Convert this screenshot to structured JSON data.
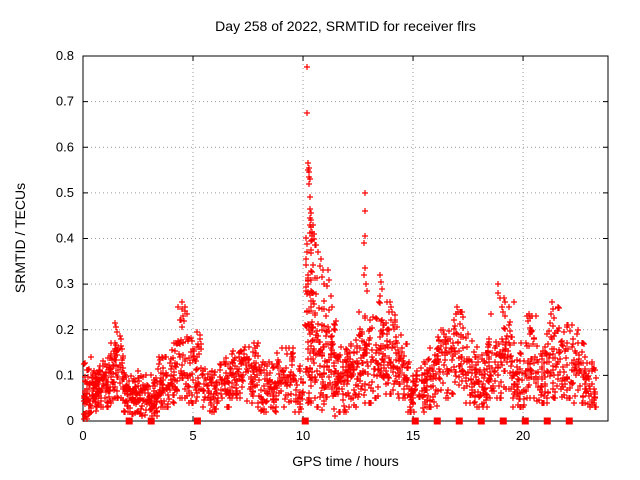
{
  "chart_data": {
    "type": "scatter",
    "title": "Day 258 of 2022, SRMTID for receiver flrs",
    "xlabel": "GPS time / hours",
    "ylabel": "SRMTID / TECUs",
    "xlim": [
      0,
      23.86
    ],
    "ylim": [
      0,
      0.8
    ],
    "xticks": [
      [
        0,
        "0"
      ],
      [
        5,
        "5"
      ],
      [
        10,
        "10"
      ],
      [
        15,
        "15"
      ],
      [
        20,
        "20"
      ]
    ],
    "yticks": [
      [
        0,
        "0"
      ],
      [
        0.1,
        "0.1"
      ],
      [
        0.2,
        "0.2"
      ],
      [
        0.3,
        "0.3"
      ],
      [
        0.4,
        "0.4"
      ],
      [
        0.5,
        "0.5"
      ],
      [
        0.6,
        "0.6"
      ],
      [
        0.7,
        "0.7"
      ],
      [
        0.8,
        "0.8"
      ]
    ],
    "grid": true,
    "legend": "none",
    "colors": {
      "marker": "#ff0000",
      "grid": "#9a9a9a",
      "axis": "#000000",
      "background": "#ffffff"
    },
    "marker": "plus",
    "seed": 2022258,
    "bands_format": "[x_start, x_end, n_points, y_mean, y_spread, y_min, y_max] — dense noisy scatter band read from plot",
    "bands": [
      [
        0.0,
        0.35,
        45,
        0.065,
        0.03,
        0.015,
        0.13
      ],
      [
        0.35,
        0.7,
        50,
        0.075,
        0.03,
        0.02,
        0.14
      ],
      [
        0.7,
        1.2,
        60,
        0.08,
        0.035,
        0.03,
        0.15
      ],
      [
        1.2,
        1.45,
        30,
        0.1,
        0.04,
        0.04,
        0.17
      ],
      [
        1.45,
        1.8,
        40,
        0.12,
        0.045,
        0.05,
        0.19
      ],
      [
        1.8,
        2.2,
        45,
        0.065,
        0.03,
        0.02,
        0.12
      ],
      [
        2.2,
        2.7,
        55,
        0.055,
        0.025,
        0.015,
        0.11
      ],
      [
        2.7,
        3.4,
        70,
        0.05,
        0.025,
        0.01,
        0.1
      ],
      [
        3.4,
        3.9,
        50,
        0.075,
        0.035,
        0.03,
        0.14
      ],
      [
        3.9,
        4.3,
        40,
        0.09,
        0.04,
        0.04,
        0.17
      ],
      [
        4.3,
        4.8,
        45,
        0.13,
        0.055,
        0.05,
        0.25
      ],
      [
        4.8,
        5.4,
        50,
        0.11,
        0.045,
        0.04,
        0.2
      ],
      [
        5.4,
        6.2,
        60,
        0.06,
        0.025,
        0.02,
        0.115
      ],
      [
        6.2,
        6.7,
        40,
        0.08,
        0.035,
        0.03,
        0.14
      ],
      [
        6.7,
        7.4,
        60,
        0.11,
        0.035,
        0.05,
        0.17
      ],
      [
        7.4,
        8.05,
        55,
        0.1,
        0.04,
        0.03,
        0.17
      ],
      [
        8.05,
        8.8,
        60,
        0.07,
        0.03,
        0.02,
        0.13
      ],
      [
        8.8,
        9.6,
        65,
        0.1,
        0.035,
        0.03,
        0.16
      ],
      [
        9.6,
        10.05,
        28,
        0.065,
        0.03,
        0.02,
        0.12
      ],
      [
        10.1,
        10.45,
        75,
        0.22,
        0.1,
        0.04,
        0.46
      ],
      [
        10.45,
        10.7,
        30,
        0.17,
        0.09,
        0.03,
        0.39
      ],
      [
        10.7,
        11.05,
        45,
        0.12,
        0.07,
        0.01,
        0.33
      ],
      [
        11.05,
        11.5,
        50,
        0.11,
        0.06,
        0.01,
        0.27
      ],
      [
        11.5,
        12.0,
        55,
        0.09,
        0.04,
        0.02,
        0.18
      ],
      [
        12.0,
        12.5,
        55,
        0.1,
        0.04,
        0.03,
        0.19
      ],
      [
        12.5,
        13.1,
        60,
        0.12,
        0.05,
        0.04,
        0.3
      ],
      [
        13.1,
        13.7,
        55,
        0.15,
        0.06,
        0.05,
        0.31
      ],
      [
        13.7,
        14.3,
        55,
        0.15,
        0.05,
        0.06,
        0.26
      ],
      [
        14.3,
        14.75,
        40,
        0.12,
        0.04,
        0.05,
        0.2
      ],
      [
        14.75,
        15.6,
        70,
        0.07,
        0.03,
        0.02,
        0.13
      ],
      [
        15.6,
        16.1,
        45,
        0.09,
        0.04,
        0.03,
        0.16
      ],
      [
        16.1,
        16.6,
        45,
        0.12,
        0.045,
        0.05,
        0.2
      ],
      [
        16.6,
        17.3,
        60,
        0.15,
        0.05,
        0.06,
        0.24
      ],
      [
        17.3,
        17.9,
        50,
        0.11,
        0.04,
        0.04,
        0.19
      ],
      [
        17.9,
        18.4,
        45,
        0.08,
        0.035,
        0.03,
        0.15
      ],
      [
        18.4,
        19.0,
        55,
        0.12,
        0.05,
        0.05,
        0.25
      ],
      [
        19.0,
        19.5,
        45,
        0.16,
        0.05,
        0.07,
        0.27
      ],
      [
        19.5,
        20.1,
        50,
        0.09,
        0.04,
        0.03,
        0.17
      ],
      [
        20.1,
        20.6,
        45,
        0.13,
        0.05,
        0.05,
        0.23
      ],
      [
        20.6,
        21.1,
        45,
        0.1,
        0.04,
        0.04,
        0.18
      ],
      [
        21.1,
        21.7,
        50,
        0.14,
        0.055,
        0.05,
        0.25
      ],
      [
        21.7,
        22.3,
        50,
        0.12,
        0.045,
        0.05,
        0.21
      ],
      [
        22.3,
        22.85,
        45,
        0.1,
        0.04,
        0.04,
        0.17
      ],
      [
        22.85,
        23.3,
        40,
        0.075,
        0.03,
        0.03,
        0.13
      ]
    ],
    "feature_points": [
      [
        0.05,
        0.005
      ],
      [
        0.12,
        0.008
      ],
      [
        0.18,
        0.004
      ],
      [
        0.1,
        0.012
      ],
      [
        1.45,
        0.215
      ],
      [
        1.5,
        0.205
      ],
      [
        1.55,
        0.195
      ],
      [
        4.5,
        0.26
      ],
      [
        4.48,
        0.245
      ],
      [
        4.55,
        0.23
      ],
      [
        4.6,
        0.22
      ],
      [
        5.2,
        0.195
      ],
      [
        5.3,
        0.18
      ],
      [
        10.2,
        0.775
      ],
      [
        10.2,
        0.675
      ],
      [
        10.22,
        0.565
      ],
      [
        10.26,
        0.555
      ],
      [
        10.24,
        0.55
      ],
      [
        10.28,
        0.545
      ],
      [
        10.25,
        0.535
      ],
      [
        10.3,
        0.53
      ],
      [
        10.27,
        0.52
      ],
      [
        10.3,
        0.49
      ],
      [
        10.32,
        0.465
      ],
      [
        10.35,
        0.455
      ],
      [
        10.3,
        0.445
      ],
      [
        10.36,
        0.44
      ],
      [
        10.33,
        0.43
      ],
      [
        10.38,
        0.425
      ],
      [
        10.42,
        0.415
      ],
      [
        10.4,
        0.405
      ],
      [
        10.45,
        0.43
      ],
      [
        10.5,
        0.41
      ],
      [
        10.52,
        0.4
      ],
      [
        10.6,
        0.385
      ],
      [
        10.7,
        0.37
      ],
      [
        10.8,
        0.355
      ],
      [
        10.75,
        0.34
      ],
      [
        10.9,
        0.33
      ],
      [
        10.85,
        0.315
      ],
      [
        10.95,
        0.3
      ],
      [
        11.15,
        0.33
      ],
      [
        11.2,
        0.31
      ],
      [
        11.1,
        0.295
      ],
      [
        11.25,
        0.275
      ],
      [
        11.3,
        0.25
      ],
      [
        11.5,
        0.22
      ],
      [
        11.45,
        0.21
      ],
      [
        12.8,
        0.5
      ],
      [
        12.82,
        0.46
      ],
      [
        12.8,
        0.405
      ],
      [
        12.78,
        0.39
      ],
      [
        12.8,
        0.335
      ],
      [
        12.76,
        0.32
      ],
      [
        12.85,
        0.3
      ],
      [
        12.9,
        0.285
      ],
      [
        13.5,
        0.32
      ],
      [
        13.55,
        0.305
      ],
      [
        13.6,
        0.29
      ],
      [
        13.52,
        0.275
      ],
      [
        13.45,
        0.26
      ],
      [
        13.95,
        0.26
      ],
      [
        14.0,
        0.25
      ],
      [
        14.05,
        0.24
      ],
      [
        16.35,
        0.2
      ],
      [
        17.0,
        0.25
      ],
      [
        17.05,
        0.24
      ],
      [
        16.95,
        0.235
      ],
      [
        18.88,
        0.3
      ],
      [
        18.85,
        0.28
      ],
      [
        18.95,
        0.27
      ],
      [
        19.15,
        0.27
      ],
      [
        19.2,
        0.26
      ],
      [
        19.6,
        0.26
      ],
      [
        20.25,
        0.235
      ],
      [
        20.3,
        0.225
      ],
      [
        21.3,
        0.26
      ],
      [
        21.35,
        0.245
      ],
      [
        21.28,
        0.235
      ],
      [
        21.4,
        0.225
      ],
      [
        22.0,
        0.21
      ],
      [
        22.5,
        0.2
      ],
      [
        22.45,
        0.19
      ]
    ],
    "zero_flag_squares_x": [
      2.1,
      3.1,
      5.2,
      10.1,
      15.1,
      16.1,
      17.1,
      18.1,
      19.1,
      20.1,
      21.1,
      22.1
    ]
  }
}
